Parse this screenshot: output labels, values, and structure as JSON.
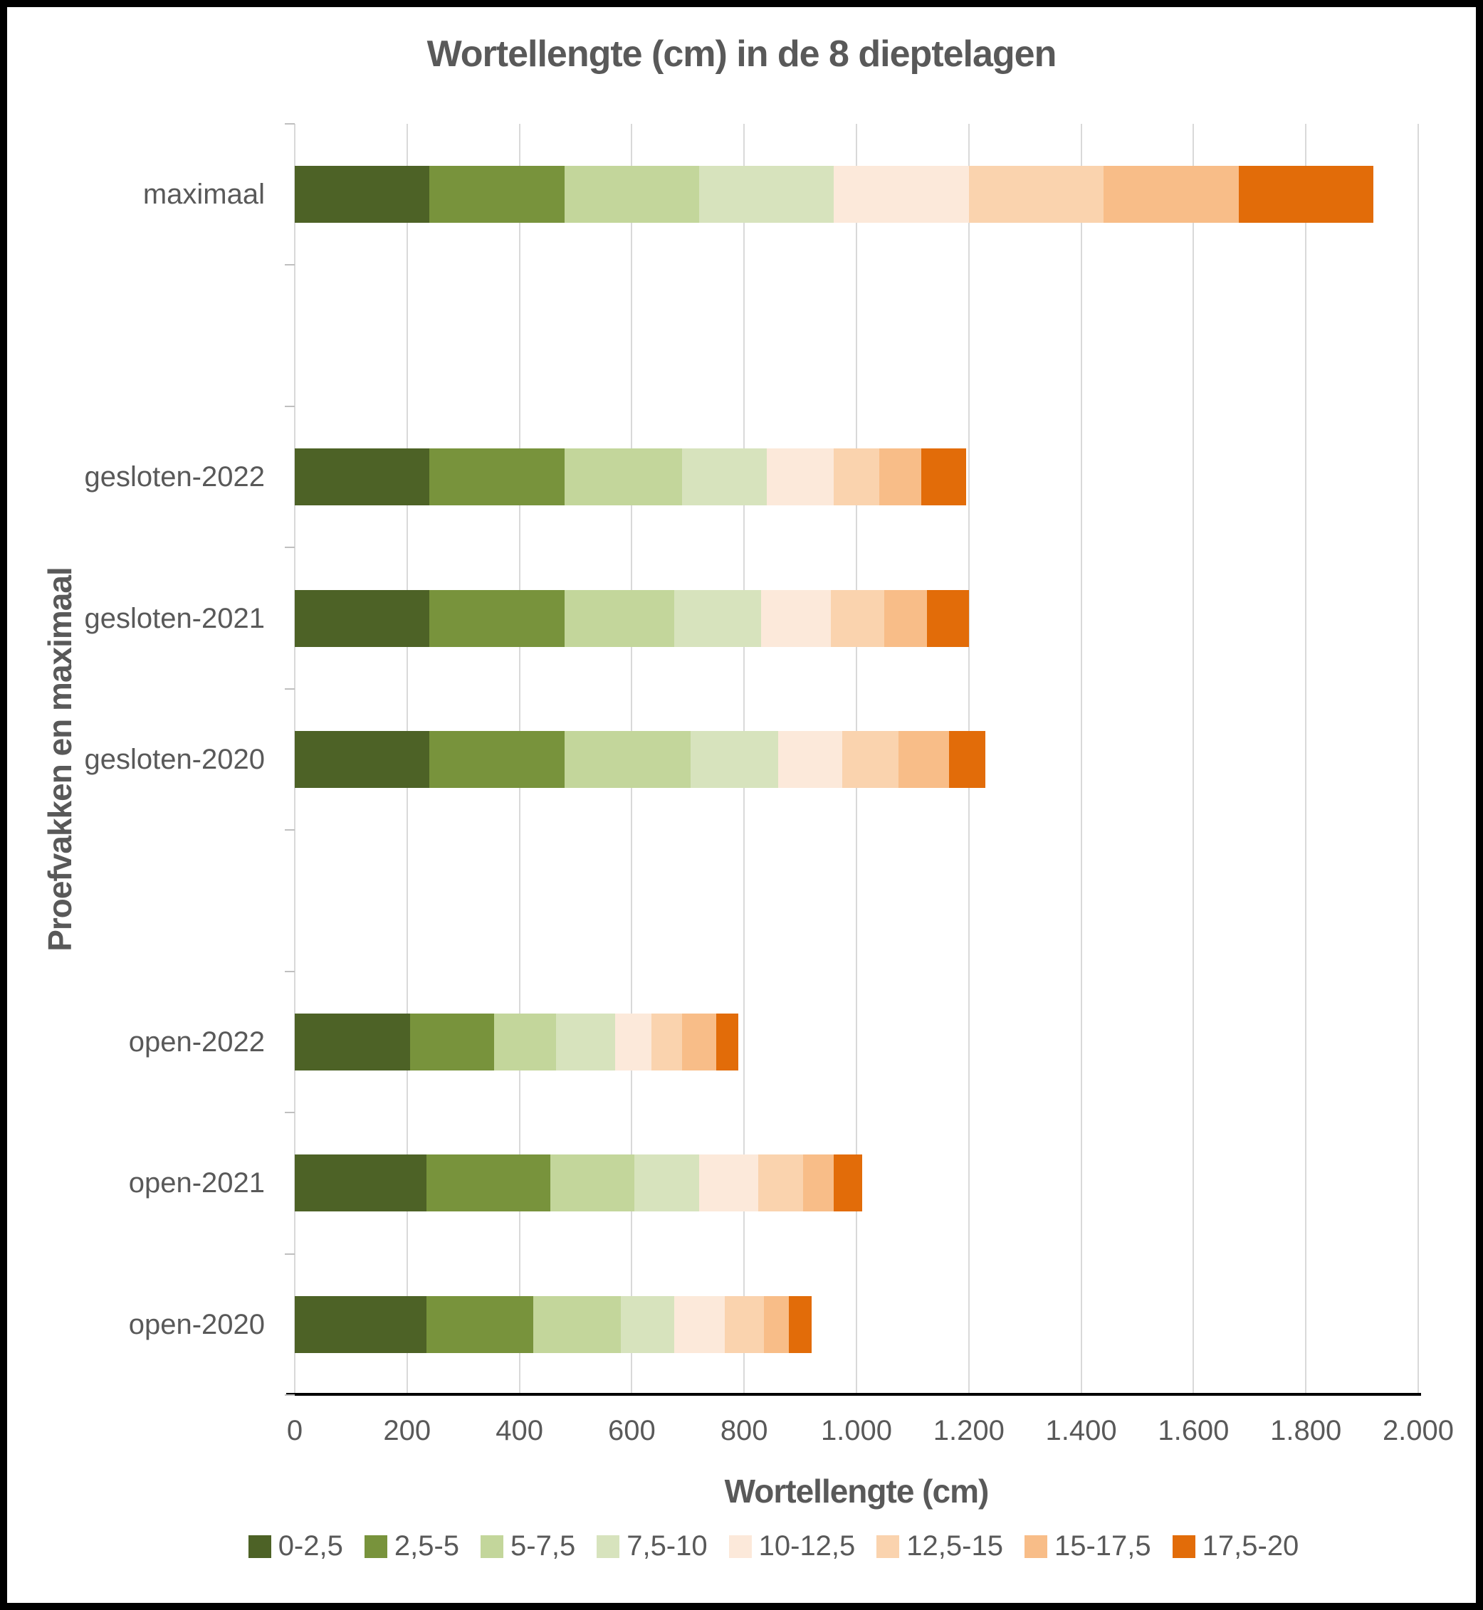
{
  "title": "Wortellengte (cm) in de 8 dieptelagen",
  "x_axis": {
    "title": "Wortellengte (cm)",
    "tick_values": [
      0,
      200,
      400,
      600,
      800,
      1000,
      1200,
      1400,
      1600,
      1800,
      2000
    ],
    "tick_labels": [
      "0",
      "200",
      "400",
      "600",
      "800",
      "1.000",
      "1.200",
      "1.400",
      "1.600",
      "1.800",
      "2.000"
    ]
  },
  "y_axis": {
    "title": "Proefvakken en maximaal",
    "categories": [
      "maximaal",
      "gesloten-2022",
      "gesloten-2021",
      "gesloten-2020",
      "open-2022",
      "open-2021",
      "open-2020"
    ]
  },
  "chart_data": {
    "type": "bar",
    "orientation": "horizontal",
    "stacked": true,
    "grid": true,
    "legend_position": "bottom",
    "title": "Wortellengte (cm) in de 8 dieptelagen",
    "xlabel": "Wortellengte (cm)",
    "ylabel": "Proefvakken en maximaal",
    "xlim": [
      0,
      2000
    ],
    "slot_count": 9,
    "series": [
      {
        "name": "0-2,5",
        "color": "#4d6226"
      },
      {
        "name": "2,5-5",
        "color": "#78933c"
      },
      {
        "name": "5-7,5",
        "color": "#c3d69b"
      },
      {
        "name": "7,5-10",
        "color": "#d7e3bd"
      },
      {
        "name": "10-12,5",
        "color": "#fce9da"
      },
      {
        "name": "12,5-15",
        "color": "#fad3ae"
      },
      {
        "name": "15-17,5",
        "color": "#f8bd88"
      },
      {
        "name": "17,5-20",
        "color": "#e26c09"
      }
    ],
    "rows": [
      {
        "label": "maximaal",
        "slot": 0,
        "values": [
          240,
          240,
          240,
          240,
          240,
          240,
          240,
          240
        ],
        "total": 1920
      },
      {
        "label": "gesloten-2022",
        "slot": 2,
        "values": [
          240,
          240,
          210,
          150,
          120,
          80,
          75,
          80
        ],
        "total": 1195
      },
      {
        "label": "gesloten-2021",
        "slot": 3,
        "values": [
          240,
          240,
          195,
          155,
          125,
          95,
          75,
          75
        ],
        "total": 1200
      },
      {
        "label": "gesloten-2020",
        "slot": 4,
        "values": [
          240,
          240,
          225,
          155,
          115,
          100,
          90,
          65
        ],
        "total": 1230
      },
      {
        "label": "open-2022",
        "slot": 6,
        "values": [
          205,
          150,
          110,
          105,
          65,
          55,
          60,
          40
        ],
        "total": 790
      },
      {
        "label": "open-2021",
        "slot": 7,
        "values": [
          235,
          220,
          150,
          115,
          105,
          80,
          55,
          50
        ],
        "total": 1010
      },
      {
        "label": "open-2020",
        "slot": 8,
        "values": [
          235,
          190,
          155,
          95,
          90,
          70,
          45,
          40
        ],
        "total": 920
      }
    ],
    "colors": {
      "text": "#595959",
      "gridline": "#d9d9d9",
      "tick": "#bfbfbf",
      "axis_line": "#000000"
    }
  }
}
